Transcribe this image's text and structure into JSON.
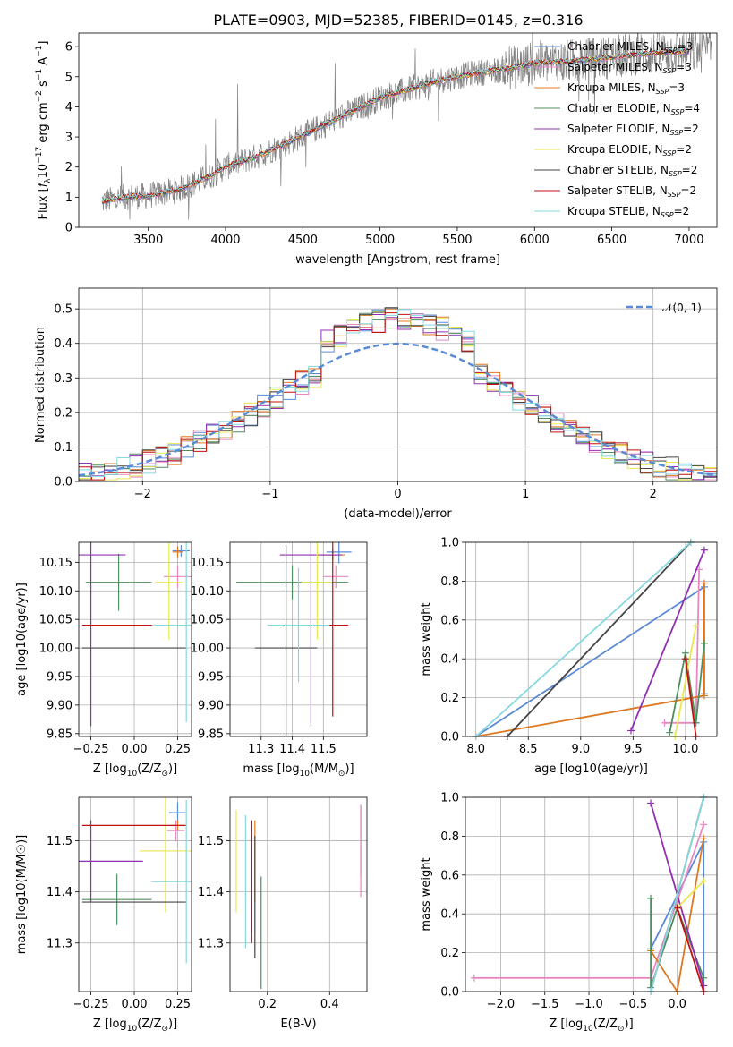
{
  "figure": {
    "title": "PLATE=0903, MJD=52385, FIBERID=0145, z=0.316"
  },
  "colors": {
    "chabrier_miles": "#5b8bd6",
    "salpeter_miles": "#e888c0",
    "kroupa_miles": "#e07820",
    "chabrier_elodie": "#4f8f5f",
    "salpeter_elodie": "#9030b0",
    "kroupa_elodie": "#e8e850",
    "chabrier_stelib": "#444444",
    "salpeter_stelib": "#c01010",
    "kroupa_stelib": "#88d8e0",
    "data": "#808080",
    "gaussian": "#5b8bd6"
  },
  "chart_data": [
    {
      "id": "spectrum",
      "type": "line",
      "title": "PLATE=0903, MJD=52385, FIBERID=0145, z=0.316",
      "xlabel": "wavelength [Angstrom, rest frame]",
      "ylabel_parts": [
        "Flux [",
        "f",
        "λ",
        "10",
        "−17",
        " erg cm",
        "−2",
        " s",
        "−1",
        " A",
        "−1",
        "]"
      ],
      "xlim": [
        3050,
        7180
      ],
      "ylim": [
        0,
        6.45
      ],
      "xticks": [
        3500,
        4000,
        4500,
        5000,
        5500,
        6000,
        6500,
        7000
      ],
      "yticks": [
        0,
        1,
        2,
        3,
        4,
        5,
        6
      ],
      "grid": false,
      "legend_position": "top-right",
      "series": [
        {
          "key": "chabrier_miles",
          "label_main": "Chabrier MILES, N",
          "label_sub": "SSP",
          "label_tail": "=3"
        },
        {
          "key": "salpeter_miles",
          "label_main": "Salpeter MILES, N",
          "label_sub": "SSP",
          "label_tail": "=3"
        },
        {
          "key": "kroupa_miles",
          "label_main": "Kroupa MILES, N",
          "label_sub": "SSP",
          "label_tail": "=3"
        },
        {
          "key": "chabrier_elodie",
          "label_main": "Chabrier ELODIE, N",
          "label_sub": "SSP",
          "label_tail": "=4"
        },
        {
          "key": "salpeter_elodie",
          "label_main": "Salpeter ELODIE, N",
          "label_sub": "SSP",
          "label_tail": "=2"
        },
        {
          "key": "kroupa_elodie",
          "label_main": "Kroupa ELODIE, N",
          "label_sub": "SSP",
          "label_tail": "=2"
        },
        {
          "key": "chabrier_stelib",
          "label_main": "Chabrier STELIB, N",
          "label_sub": "SSP",
          "label_tail": "=2"
        },
        {
          "key": "salpeter_stelib",
          "label_main": "Salpeter STELIB, N",
          "label_sub": "SSP",
          "label_tail": "=2"
        },
        {
          "key": "kroupa_stelib",
          "label_main": "Kroupa STELIB, N",
          "label_sub": "SSP",
          "label_tail": "=2"
        }
      ],
      "continuum": [
        [
          3200,
          0.85
        ],
        [
          3350,
          1.0
        ],
        [
          3500,
          1.05
        ],
        [
          3700,
          1.25
        ],
        [
          3900,
          1.7
        ],
        [
          4000,
          2.0
        ],
        [
          4200,
          2.35
        ],
        [
          4400,
          2.8
        ],
        [
          4600,
          3.3
        ],
        [
          4800,
          3.8
        ],
        [
          5000,
          4.3
        ],
        [
          5200,
          4.6
        ],
        [
          5400,
          4.9
        ],
        [
          5600,
          5.1
        ],
        [
          5800,
          5.25
        ],
        [
          6000,
          5.45
        ],
        [
          6200,
          5.5
        ],
        [
          6400,
          5.6
        ],
        [
          6600,
          5.7
        ],
        [
          6800,
          5.8
        ],
        [
          7000,
          5.85
        ]
      ],
      "model_x_range": [
        3200,
        7000
      ],
      "data_x_range": [
        3200,
        7150
      ]
    },
    {
      "id": "residuals",
      "type": "line",
      "xlabel": "(data-model)/error",
      "ylabel": "Normed distribution",
      "xlim": [
        -2.5,
        2.5
      ],
      "ylim": [
        0,
        0.56
      ],
      "xticks": [
        -2,
        -1,
        0,
        1,
        2
      ],
      "yticks": [
        0.0,
        0.1,
        0.2,
        0.3,
        0.4,
        0.5
      ],
      "grid": true,
      "legend": "𝒩(0, 1)",
      "legend_position": "top-right",
      "bin_width": 0.1
    },
    {
      "id": "age-vs-z",
      "type": "scatter",
      "xlabel_main": "Z [log",
      "xlabel_sub": "10",
      "xlabel_tail": "(Z/Z",
      "ylabel": "age  [log10(age/yr)]",
      "xlim": [
        -0.32,
        0.33
      ],
      "ylim": [
        9.845,
        10.185
      ],
      "xticks": [
        -0.25,
        0.0,
        0.25
      ],
      "yticks": [
        9.85,
        9.9,
        9.95,
        10.0,
        10.05,
        10.1,
        10.15
      ],
      "grid": true,
      "points": [
        {
          "key": "chabrier_miles",
          "x": 0.27,
          "y": 10.17,
          "xerr": 0.05,
          "yerr": 0.01
        },
        {
          "key": "salpeter_miles",
          "x": 0.25,
          "y": 10.125,
          "xerr": 0.08,
          "yerr": 0.02
        },
        {
          "key": "kroupa_miles",
          "x": 0.25,
          "y": 10.168,
          "xerr": 0.03,
          "yerr": 0.01
        },
        {
          "key": "chabrier_elodie",
          "x": -0.09,
          "y": 10.115,
          "xerr": 0.19,
          "yerr": 0.05
        },
        {
          "key": "salpeter_elodie",
          "x": -0.25,
          "y": 10.163,
          "xerr": 0.2,
          "yerr": 0.3
        },
        {
          "key": "kroupa_elodie",
          "x": 0.2,
          "y": 10.115,
          "xerr": 0.08,
          "yerr": 0.1
        },
        {
          "key": "chabrier_stelib",
          "x": 0.0,
          "y": 10.0,
          "xerr": 0.3,
          "yerr": 0.0
        },
        {
          "key": "salpeter_stelib",
          "x": 0.0,
          "y": 10.04,
          "xerr": 0.3,
          "yerr": 0.0
        },
        {
          "key": "kroupa_stelib",
          "x": 0.3,
          "y": 10.04,
          "xerr": 0.2,
          "yerr": 0.17
        }
      ]
    },
    {
      "id": "age-vs-mass",
      "type": "scatter",
      "xlabel_main": "mass [log",
      "xlabel_sub": "10",
      "xlabel_tail": "(M/M",
      "ylabel": "",
      "xlim": [
        11.2,
        11.64
      ],
      "ylim": [
        9.845,
        10.185
      ],
      "xticks": [
        11.3,
        11.4,
        11.5
      ],
      "yticks": [
        9.85,
        9.9,
        9.95,
        10.0,
        10.05,
        10.1,
        10.15
      ],
      "grid": true,
      "points": [
        {
          "key": "chabrier_miles",
          "x": 11.55,
          "y": 10.168,
          "xerr": 0.04,
          "yerr": 0.02
        },
        {
          "key": "salpeter_miles",
          "x": 11.54,
          "y": 10.125,
          "xerr": 0.04,
          "yerr": 0.02
        },
        {
          "key": "kroupa_miles",
          "x": 11.53,
          "y": 10.163,
          "xerr": 0.04,
          "yerr": 0.01
        },
        {
          "key": "chabrier_elodie",
          "x": 11.4,
          "y": 10.115,
          "xerr": 0.18,
          "yerr": 0.03
        },
        {
          "key": "salpeter_elodie",
          "x": 11.46,
          "y": 10.163,
          "xerr": 0.1,
          "yerr": 0.3
        },
        {
          "key": "kroupa_elodie",
          "x": 11.48,
          "y": 10.115,
          "xerr": 0.05,
          "yerr": 0.1
        },
        {
          "key": "chabrier_stelib",
          "x": 11.38,
          "y": 10.0,
          "xerr": 0.1,
          "yerr": 0.18
        },
        {
          "key": "salpeter_stelib",
          "x": 11.53,
          "y": 10.04,
          "xerr": 0.05,
          "yerr": 0.16
        },
        {
          "key": "kroupa_stelib",
          "x": 11.42,
          "y": 10.04,
          "xerr": 0.1,
          "yerr": 0.1
        }
      ]
    },
    {
      "id": "weight-vs-age",
      "type": "line",
      "xlabel": "age  [log10(age/yr)]",
      "ylabel": "mass weight",
      "xlim": [
        7.9,
        10.3
      ],
      "ylim": [
        0,
        1.0
      ],
      "xticks": [
        8.0,
        8.5,
        9.0,
        9.5,
        10.0
      ],
      "yticks": [
        0.0,
        0.2,
        0.4,
        0.6,
        0.8,
        1.0
      ],
      "grid": true,
      "series": [
        {
          "key": "chabrier_miles",
          "points": [
            [
              8.0,
              0.0
            ],
            [
              10.18,
              0.77
            ],
            [
              10.18,
              0.22
            ]
          ]
        },
        {
          "key": "salpeter_miles",
          "points": [
            [
              9.8,
              0.07
            ],
            [
              10.1,
              0.07
            ],
            [
              10.13,
              0.86
            ]
          ]
        },
        {
          "key": "kroupa_miles",
          "points": [
            [
              8.0,
              0.0
            ],
            [
              10.18,
              0.21
            ],
            [
              10.18,
              0.79
            ]
          ]
        },
        {
          "key": "chabrier_elodie",
          "points": [
            [
              9.85,
              0.02
            ],
            [
              10.0,
              0.43
            ],
            [
              10.1,
              0.07
            ],
            [
              10.18,
              0.48
            ]
          ]
        },
        {
          "key": "salpeter_elodie",
          "points": [
            [
              9.48,
              0.03
            ],
            [
              10.18,
              0.96
            ]
          ]
        },
        {
          "key": "kroupa_elodie",
          "points": [
            [
              9.9,
              0.0
            ],
            [
              10.1,
              0.57
            ]
          ]
        },
        {
          "key": "chabrier_stelib",
          "points": [
            [
              8.3,
              0.0
            ],
            [
              10.05,
              1.0
            ]
          ]
        },
        {
          "key": "salpeter_stelib",
          "points": [
            [
              10.0,
              0.4
            ],
            [
              10.1,
              0.0
            ]
          ]
        },
        {
          "key": "kroupa_stelib",
          "points": [
            [
              8.0,
              0.0
            ],
            [
              10.05,
              1.0
            ]
          ]
        }
      ]
    },
    {
      "id": "mass-vs-z",
      "type": "scatter",
      "xlabel_main": "Z [log",
      "xlabel_sub": "10",
      "xlabel_tail": "(Z/Z",
      "ylabel": "mass [log10(M/M☉)]",
      "xlim": [
        -0.32,
        0.33
      ],
      "ylim": [
        11.205,
        11.585
      ],
      "xticks": [
        -0.25,
        0.0,
        0.25
      ],
      "yticks": [
        11.3,
        11.4,
        11.5
      ],
      "grid": true,
      "points": [
        {
          "key": "chabrier_miles",
          "x": 0.25,
          "y": 11.555,
          "xerr": 0.05,
          "yerr": 0.02
        },
        {
          "key": "salpeter_miles",
          "x": 0.24,
          "y": 11.52,
          "xerr": 0.05,
          "yerr": 0.02
        },
        {
          "key": "kroupa_miles",
          "x": 0.25,
          "y": 11.53,
          "xerr": 0.04,
          "yerr": 0.01
        },
        {
          "key": "chabrier_elodie",
          "x": -0.1,
          "y": 11.385,
          "xerr": 0.2,
          "yerr": 0.05
        },
        {
          "key": "salpeter_elodie",
          "x": -0.25,
          "y": 11.46,
          "xerr": 0.3,
          "yerr": 0.08
        },
        {
          "key": "kroupa_elodie",
          "x": 0.18,
          "y": 11.48,
          "xerr": 0.15,
          "yerr": 0.12
        },
        {
          "key": "chabrier_stelib",
          "x": 0.0,
          "y": 11.38,
          "xerr": 0.3,
          "yerr": 0.0
        },
        {
          "key": "salpeter_stelib",
          "x": 0.0,
          "y": 11.53,
          "xerr": 0.3,
          "yerr": 0.0
        },
        {
          "key": "kroupa_stelib",
          "x": 0.3,
          "y": 11.42,
          "xerr": 0.2,
          "yerr": 0.16
        }
      ]
    },
    {
      "id": "mass-vs-ebv",
      "type": "scatter",
      "xlabel": "E(B-V)",
      "ylabel": "",
      "xlim": [
        0.08,
        0.52
      ],
      "ylim": [
        11.205,
        11.585
      ],
      "xticks": [
        0.2,
        0.4
      ],
      "yticks": [
        11.3,
        11.4,
        11.5
      ],
      "grid": true,
      "points": [
        {
          "key": "chabrier_miles",
          "x": 0.5,
          "y": 11.5,
          "xerr": 0.0,
          "yerr": 0.07
        },
        {
          "key": "salpeter_miles",
          "x": 0.5,
          "y": 11.48,
          "xerr": 0.0,
          "yerr": 0.09
        },
        {
          "key": "kroupa_miles",
          "x": 0.16,
          "y": 11.46,
          "xerr": 0.0,
          "yerr": 0.08
        },
        {
          "key": "chabrier_elodie",
          "x": 0.18,
          "y": 11.32,
          "xerr": 0.0,
          "yerr": 0.11
        },
        {
          "key": "salpeter_elodie",
          "x": 0.15,
          "y": 11.43,
          "xerr": 0.0,
          "yerr": 0.11
        },
        {
          "key": "kroupa_elodie",
          "x": 0.1,
          "y": 11.46,
          "xerr": 0.0,
          "yerr": 0.1
        },
        {
          "key": "chabrier_stelib",
          "x": 0.16,
          "y": 11.39,
          "xerr": 0.0,
          "yerr": 0.12
        },
        {
          "key": "salpeter_stelib",
          "x": 0.15,
          "y": 11.42,
          "xerr": 0.0,
          "yerr": 0.12
        },
        {
          "key": "kroupa_stelib",
          "x": 0.13,
          "y": 11.42,
          "xerr": 0.0,
          "yerr": 0.13
        }
      ]
    },
    {
      "id": "weight-vs-z",
      "type": "line",
      "xlabel_main": "Z [log",
      "xlabel_sub": "10",
      "xlabel_tail": "(Z/Z",
      "ylabel": "mass weight",
      "xlim": [
        -2.4,
        0.45
      ],
      "ylim": [
        0,
        1.0
      ],
      "xticks": [
        -2.0,
        -1.5,
        -1.0,
        -0.5,
        0.0
      ],
      "yticks": [
        0.0,
        0.2,
        0.4,
        0.6,
        0.8,
        1.0
      ],
      "grid": true,
      "series": [
        {
          "key": "chabrier_miles",
          "points": [
            [
              -0.3,
              0.22
            ],
            [
              0.3,
              0.77
            ],
            [
              0.3,
              0.0
            ]
          ]
        },
        {
          "key": "salpeter_miles",
          "points": [
            [
              -2.3,
              0.07
            ],
            [
              -0.3,
              0.07
            ],
            [
              0.3,
              0.86
            ]
          ]
        },
        {
          "key": "kroupa_miles",
          "points": [
            [
              -0.3,
              0.21
            ],
            [
              0.0,
              0.0
            ],
            [
              0.3,
              0.79
            ]
          ]
        },
        {
          "key": "chabrier_elodie",
          "points": [
            [
              -0.3,
              0.48
            ],
            [
              -0.3,
              0.02
            ],
            [
              0.0,
              0.43
            ],
            [
              0.3,
              0.07
            ]
          ]
        },
        {
          "key": "salpeter_elodie",
          "points": [
            [
              -0.3,
              0.97
            ],
            [
              0.3,
              0.03
            ]
          ]
        },
        {
          "key": "kroupa_elodie",
          "points": [
            [
              0.0,
              0.43
            ],
            [
              0.3,
              0.57
            ]
          ]
        },
        {
          "key": "chabrier_stelib",
          "points": [
            [
              -0.3,
              0.0
            ],
            [
              0.3,
              1.0
            ]
          ]
        },
        {
          "key": "salpeter_stelib",
          "points": [
            [
              0.0,
              0.43
            ],
            [
              0.3,
              0.0
            ]
          ]
        },
        {
          "key": "kroupa_stelib",
          "points": [
            [
              -0.3,
              0.0
            ],
            [
              0.3,
              1.0
            ]
          ]
        }
      ]
    }
  ]
}
